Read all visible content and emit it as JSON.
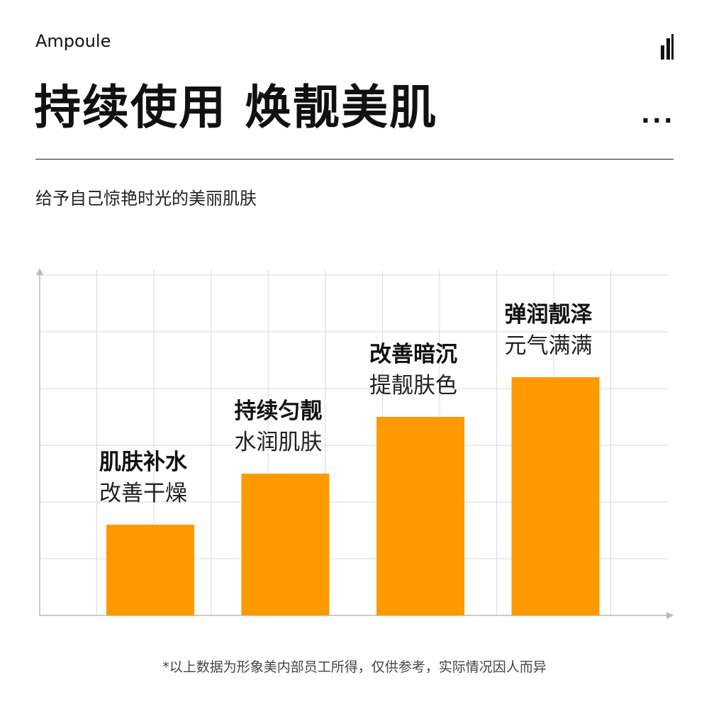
{
  "header": {
    "brand": "Ampoule",
    "title": "持续使用 焕靓美肌",
    "ellipsis": "...",
    "subtitle": "给予自己惊艳时光的美丽肌肤"
  },
  "footnote": "*以上数据为形象美内部员工所得，仅供参考，实际情况因人而异",
  "colors": {
    "bar": "#FF9900",
    "grid": "#D9D9DF",
    "axis": "#B8B8C4",
    "divider": "#222222"
  },
  "chart_data": {
    "type": "bar",
    "categories": [
      "肌肤补水",
      "持续匀靓",
      "改善暗沉",
      "弹润靓泽"
    ],
    "sublabels": [
      "改善干燥",
      "水润肌肤",
      "提靓肤色",
      "元气满满"
    ],
    "values": [
      1.6,
      2.5,
      3.5,
      4.2
    ],
    "ylim": [
      0,
      6
    ],
    "grid": true,
    "title": "",
    "xlabel": "",
    "ylabel": ""
  }
}
